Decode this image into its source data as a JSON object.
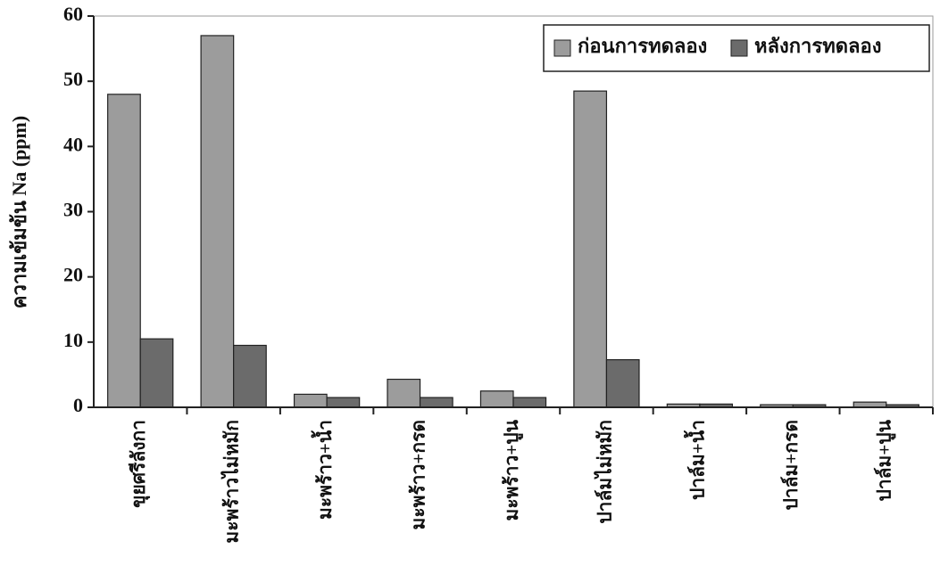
{
  "chart_data": {
    "type": "bar",
    "y_label": "ความเข้มข้น Na (ppm)",
    "categories": [
      "ขุยศรีลังกา",
      "มะพร้าวไม่หมัก",
      "มะพร้าว+น้ำ",
      "มะพร้าว+กรด",
      "มะพร้าว+ปูน",
      "ปาล์มไม่หมัก",
      "ปาล์ม+น้ำ",
      "ปาล์ม+กรด",
      "ปาล์ม+ปูน"
    ],
    "series": [
      {
        "name": "ก่อนการทดลอง",
        "color": "#9c9c9c",
        "values": [
          48,
          57,
          2,
          4.3,
          2.5,
          48.5,
          0.5,
          0.4,
          0.8
        ]
      },
      {
        "name": "หลังการทดลอง",
        "color": "#6b6b6b",
        "values": [
          10.5,
          9.5,
          1.5,
          1.5,
          1.5,
          7.3,
          0.5,
          0.4,
          0.4
        ]
      }
    ],
    "ylim": [
      0,
      60
    ],
    "yticks": [
      0,
      10,
      20,
      30,
      40,
      50,
      60
    ],
    "legend": "upper right"
  }
}
